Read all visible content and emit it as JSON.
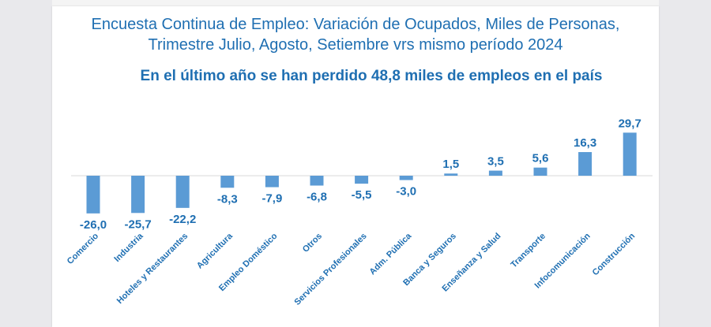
{
  "header": {
    "title_line1": "Encuesta Continua de Empleo: Variación de Ocupados, Miles de Personas,",
    "title_line2": "Trimestre Julio, Agosto, Setiembre vrs mismo período 2024",
    "subtitle": "En el último año se han perdido 48,8 miles de empleos en el país"
  },
  "colors": {
    "bar": "#5b9bd5",
    "text": "#1f6fb2",
    "axis": "#d9d9d9"
  },
  "chart_data": {
    "type": "bar",
    "title": "Encuesta Continua de Empleo: Variación de Ocupados, Miles de Personas, Trimestre Julio, Agosto, Setiembre vrs mismo período 2024",
    "subtitle": "En el último año se han perdido 48,8 miles de empleos en el país",
    "categories": [
      "Comercio",
      "Industria",
      "Hoteles y Restaurantes",
      "Agricultura",
      "Empleo Doméstico",
      "Otros",
      "Servicios Profesionales",
      "Adm. Pública",
      "Banca y Seguros",
      "Enseñanza y Salud",
      "Transporte",
      "Infocomunicación",
      "Construcción"
    ],
    "values": [
      -26.0,
      -25.7,
      -22.2,
      -8.3,
      -7.9,
      -6.8,
      -5.5,
      -3.0,
      1.5,
      3.5,
      5.6,
      16.3,
      29.7
    ],
    "value_labels": [
      "-26,0",
      "-25,7",
      "-22,2",
      "-8,3",
      "-7,9",
      "-6,8",
      "-5,5",
      "-3,0",
      "1,5",
      "3,5",
      "5,6",
      "16,3",
      "29,7"
    ],
    "xlabel": "",
    "ylabel": "",
    "ylim": [
      -30,
      32
    ],
    "grid": false,
    "legend": "none"
  }
}
